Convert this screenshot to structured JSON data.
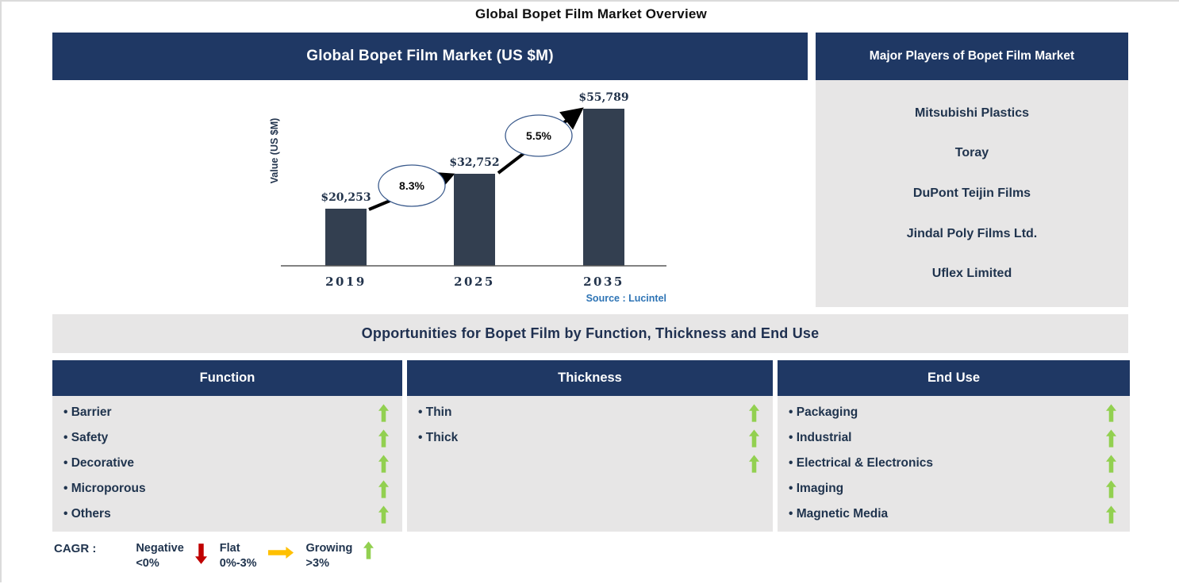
{
  "page": {
    "title": "Global Bopet Film Market Overview"
  },
  "chart_data": {
    "type": "bar",
    "title": "Global Bopet Film Market (US $M)",
    "categories": [
      "2019",
      "2025",
      "2035"
    ],
    "values": [
      20253,
      32752,
      55789
    ],
    "value_labels": [
      "$20,253",
      "$32,752",
      "$55,789"
    ],
    "growth_labels": [
      "8.3%",
      "5.5%"
    ],
    "ylabel": "Value (US $M)",
    "xlabel": "",
    "ylim": [
      0,
      55789
    ],
    "grid": false,
    "source": "Source : Lucintel",
    "bar_color": "#333F50"
  },
  "players_panel": {
    "header": "Major Players of Bopet Film Market",
    "players": [
      "Mitsubishi Plastics",
      "Toray",
      "DuPont Teijin Films",
      "Jindal Poly Films Ltd.",
      "Uflex Limited"
    ]
  },
  "opportunities": {
    "banner": "Opportunities for Bopet Film by Function, Thickness and End Use",
    "columns": [
      {
        "header": "Function",
        "items": [
          {
            "label": "Barrier",
            "arrow": "up"
          },
          {
            "label": "Safety",
            "arrow": "up"
          },
          {
            "label": "Decorative",
            "arrow": "up"
          },
          {
            "label": "Microporous",
            "arrow": "up"
          },
          {
            "label": "Others",
            "arrow": "up"
          }
        ]
      },
      {
        "header": "Thickness",
        "items": [
          {
            "label": "Thin",
            "arrow": "up"
          },
          {
            "label": "Thick",
            "arrow": "up"
          },
          {
            "label": "",
            "arrow": "up"
          }
        ]
      },
      {
        "header": "End Use",
        "items": [
          {
            "label": "Packaging",
            "arrow": "up"
          },
          {
            "label": "Industrial",
            "arrow": "up"
          },
          {
            "label": "Electrical & Electronics",
            "arrow": "up"
          },
          {
            "label": "Imaging",
            "arrow": "up"
          },
          {
            "label": "Magnetic Media",
            "arrow": "up"
          }
        ]
      }
    ]
  },
  "legend": {
    "title": "CAGR :",
    "entries": [
      {
        "name": "Negative",
        "range": "<0%",
        "arrow": "down",
        "color": "#C00000"
      },
      {
        "name": "Flat",
        "range": "0%-3%",
        "arrow": "right",
        "color": "#FFC000"
      },
      {
        "name": "Growing",
        "range": ">3%",
        "arrow": "up",
        "color": "#92D050"
      }
    ]
  },
  "colors": {
    "header_navy": "#1F3864",
    "panel_gray": "#E7E6E6",
    "bar": "#333F50",
    "text_navy": "#20344E",
    "source_blue": "#2E74B5",
    "growing_green": "#92D050",
    "negative_red": "#C00000",
    "flat_orange": "#FFC000"
  }
}
